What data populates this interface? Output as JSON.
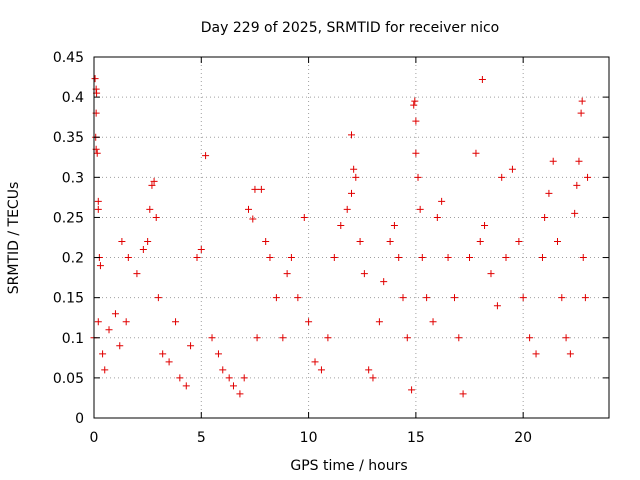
{
  "chart_data": {
    "type": "scatter",
    "title": "Day 229 of 2025, SRMTID for receiver nico",
    "xlabel": "GPS time / hours",
    "ylabel": "SRMTID / TECUs",
    "xlim": [
      0,
      24
    ],
    "ylim": [
      0,
      0.45
    ],
    "xticks": [
      0,
      5,
      10,
      15,
      20
    ],
    "yticks": [
      0,
      0.05,
      0.1,
      0.15,
      0.2,
      0.25,
      0.3,
      0.35,
      0.4,
      0.45
    ],
    "xtick_labels": [
      "0",
      "5",
      "10",
      "15",
      "20"
    ],
    "ytick_labels": [
      "0",
      "0.05",
      "0.1",
      "0.15",
      "0.2",
      "0.25",
      "0.3",
      "0.35",
      "0.4",
      "0.45"
    ],
    "grid": true,
    "marker": "+",
    "color": "#e00000",
    "series": [
      {
        "name": "SRMTID",
        "points": [
          [
            0.05,
            0.423
          ],
          [
            0.1,
            0.41
          ],
          [
            0.12,
            0.405
          ],
          [
            0.1,
            0.38
          ],
          [
            0.08,
            0.35
          ],
          [
            0.1,
            0.335
          ],
          [
            0.15,
            0.33
          ],
          [
            0.2,
            0.27
          ],
          [
            0.2,
            0.26
          ],
          [
            0.25,
            0.2
          ],
          [
            0.3,
            0.19
          ],
          [
            0.0,
            0.1
          ],
          [
            0.2,
            0.12
          ],
          [
            0.4,
            0.08
          ],
          [
            0.5,
            0.06
          ],
          [
            0.7,
            0.11
          ],
          [
            1.0,
            0.13
          ],
          [
            1.2,
            0.09
          ],
          [
            1.5,
            0.12
          ],
          [
            1.3,
            0.22
          ],
          [
            1.6,
            0.2
          ],
          [
            2.0,
            0.18
          ],
          [
            2.3,
            0.21
          ],
          [
            2.5,
            0.22
          ],
          [
            2.7,
            0.29
          ],
          [
            2.8,
            0.295
          ],
          [
            2.9,
            0.25
          ],
          [
            2.6,
            0.26
          ],
          [
            3.0,
            0.15
          ],
          [
            3.2,
            0.08
          ],
          [
            3.5,
            0.07
          ],
          [
            3.8,
            0.12
          ],
          [
            4.0,
            0.05
          ],
          [
            4.3,
            0.04
          ],
          [
            4.5,
            0.09
          ],
          [
            4.8,
            0.2
          ],
          [
            5.0,
            0.21
          ],
          [
            5.2,
            0.327
          ],
          [
            5.5,
            0.1
          ],
          [
            5.8,
            0.08
          ],
          [
            6.0,
            0.06
          ],
          [
            6.3,
            0.05
          ],
          [
            6.5,
            0.04
          ],
          [
            6.8,
            0.03
          ],
          [
            7.0,
            0.05
          ],
          [
            7.2,
            0.26
          ],
          [
            7.4,
            0.248
          ],
          [
            7.5,
            0.285
          ],
          [
            7.8,
            0.285
          ],
          [
            7.6,
            0.1
          ],
          [
            8.0,
            0.22
          ],
          [
            8.2,
            0.2
          ],
          [
            8.5,
            0.15
          ],
          [
            8.8,
            0.1
          ],
          [
            9.0,
            0.18
          ],
          [
            9.2,
            0.2
          ],
          [
            9.5,
            0.15
          ],
          [
            9.8,
            0.25
          ],
          [
            10.0,
            0.12
          ],
          [
            10.3,
            0.07
          ],
          [
            10.6,
            0.06
          ],
          [
            10.9,
            0.1
          ],
          [
            11.2,
            0.2
          ],
          [
            11.5,
            0.24
          ],
          [
            11.8,
            0.26
          ],
          [
            12.0,
            0.28
          ],
          [
            12.0,
            0.353
          ],
          [
            12.1,
            0.31
          ],
          [
            12.2,
            0.3
          ],
          [
            12.4,
            0.22
          ],
          [
            12.6,
            0.18
          ],
          [
            12.8,
            0.06
          ],
          [
            13.0,
            0.05
          ],
          [
            13.3,
            0.12
          ],
          [
            13.5,
            0.17
          ],
          [
            13.8,
            0.22
          ],
          [
            14.0,
            0.24
          ],
          [
            14.2,
            0.2
          ],
          [
            14.4,
            0.15
          ],
          [
            14.6,
            0.1
          ],
          [
            14.8,
            0.035
          ],
          [
            14.9,
            0.39
          ],
          [
            14.95,
            0.395
          ],
          [
            15.0,
            0.37
          ],
          [
            15.0,
            0.33
          ],
          [
            15.1,
            0.3
          ],
          [
            15.2,
            0.26
          ],
          [
            15.3,
            0.2
          ],
          [
            15.5,
            0.15
          ],
          [
            15.8,
            0.12
          ],
          [
            16.0,
            0.25
          ],
          [
            16.2,
            0.27
          ],
          [
            16.5,
            0.2
          ],
          [
            16.8,
            0.15
          ],
          [
            17.0,
            0.1
          ],
          [
            17.2,
            0.03
          ],
          [
            17.5,
            0.2
          ],
          [
            17.8,
            0.33
          ],
          [
            18.0,
            0.22
          ],
          [
            18.2,
            0.24
          ],
          [
            18.5,
            0.18
          ],
          [
            18.8,
            0.14
          ],
          [
            18.1,
            0.422
          ],
          [
            19.0,
            0.3
          ],
          [
            19.2,
            0.2
          ],
          [
            19.5,
            0.31
          ],
          [
            19.8,
            0.22
          ],
          [
            20.0,
            0.15
          ],
          [
            20.3,
            0.1
          ],
          [
            20.6,
            0.08
          ],
          [
            20.9,
            0.2
          ],
          [
            21.0,
            0.25
          ],
          [
            21.2,
            0.28
          ],
          [
            21.4,
            0.32
          ],
          [
            21.6,
            0.22
          ],
          [
            21.8,
            0.15
          ],
          [
            22.0,
            0.1
          ],
          [
            22.2,
            0.08
          ],
          [
            22.4,
            0.255
          ],
          [
            22.5,
            0.29
          ],
          [
            22.6,
            0.32
          ],
          [
            22.7,
            0.38
          ],
          [
            22.75,
            0.395
          ],
          [
            22.8,
            0.2
          ],
          [
            22.9,
            0.15
          ],
          [
            23.0,
            0.3
          ]
        ]
      }
    ]
  }
}
